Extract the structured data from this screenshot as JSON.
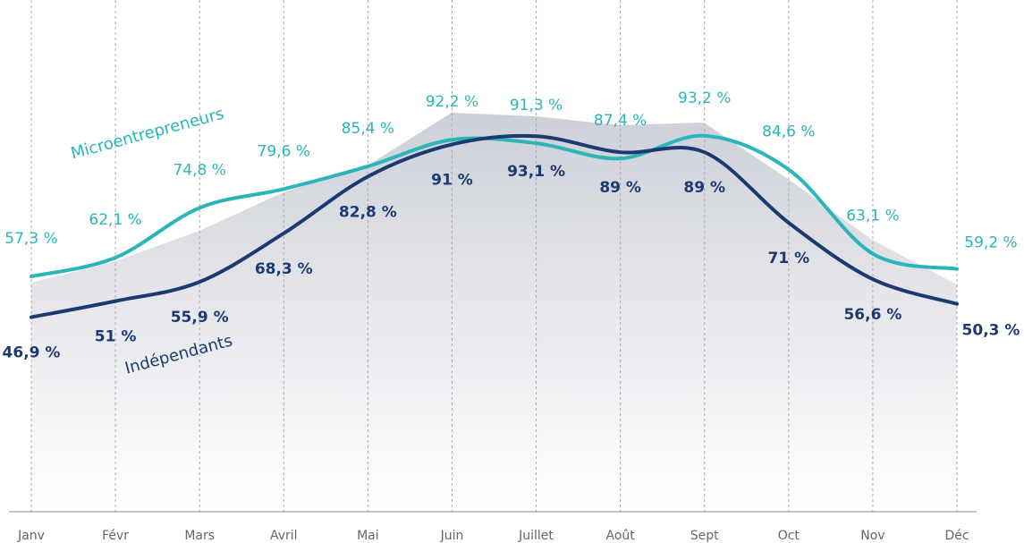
{
  "chart_data": {
    "type": "line",
    "categories": [
      "Janv",
      "Févr",
      "Mars",
      "Avril",
      "Mai",
      "Juin",
      "Juillet",
      "Août",
      "Sept",
      "Oct",
      "Nov",
      "Déc"
    ],
    "series": [
      {
        "name": "Microentrepreneurs",
        "color": "#2bb5b8",
        "values": [
          57.3,
          62.1,
          74.8,
          79.6,
          85.4,
          92.2,
          91.3,
          87.4,
          93.2,
          84.6,
          63.1,
          59.2
        ],
        "value_labels": [
          "57,3 %",
          "62,1 %",
          "74,8 %",
          "79,6 %",
          "85,4 %",
          "92,2 %",
          "91,3 %",
          "87,4 %",
          "93,2 %",
          "84,6 %",
          "63,1 %",
          "59,2 %"
        ]
      },
      {
        "name": "Indépendants",
        "color": "#1c3a70",
        "values": [
          46.9,
          51,
          55.9,
          68.3,
          82.8,
          91,
          93.1,
          89,
          89,
          71,
          56.6,
          50.3
        ],
        "value_labels": [
          "46,9 %",
          "51 %",
          "55,9 %",
          "68,3 %",
          "82,8 %",
          "91 %",
          "93,1 %",
          "89 %",
          "89 %",
          "71 %",
          "56,6 %",
          "50,3 %"
        ]
      }
    ],
    "ylim": [
      0,
      100
    ],
    "grid": true
  }
}
